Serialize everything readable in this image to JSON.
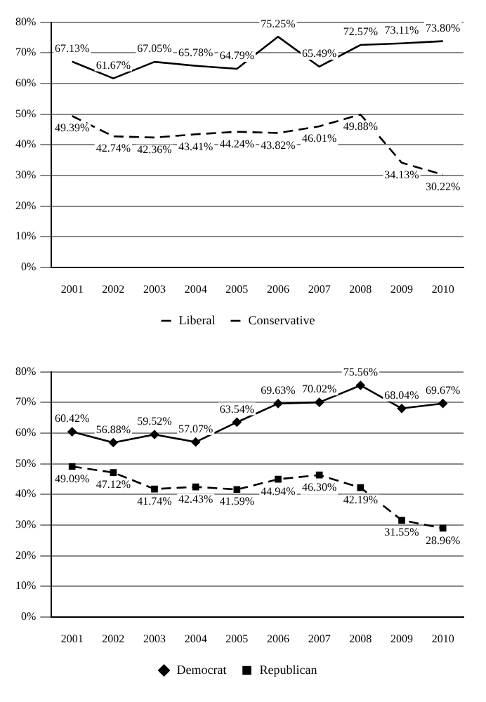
{
  "chart_data": [
    {
      "type": "line",
      "categories": [
        "2001",
        "2002",
        "2003",
        "2004",
        "2005",
        "2006",
        "2007",
        "2008",
        "2009",
        "2010"
      ],
      "series": [
        {
          "name": "Liberal",
          "color": "#000000",
          "line_style": "solid",
          "values": [
            67.13,
            61.67,
            67.05,
            65.78,
            64.79,
            75.25,
            65.49,
            72.57,
            73.11,
            73.8
          ],
          "value_labels": [
            "67.13%",
            "61.67%",
            "67.05%",
            "65.78%",
            "64.79%",
            "75.25%",
            "65.49%",
            "72.57%",
            "73.11%",
            "73.80%"
          ]
        },
        {
          "name": "Conservative",
          "color": "#000000",
          "line_style": "dashed",
          "values": [
            49.39,
            42.74,
            42.36,
            43.41,
            44.24,
            43.82,
            46.01,
            49.88,
            34.13,
            30.22
          ],
          "value_labels": [
            "49.39%",
            "42.74%",
            "42.36%",
            "43.41%",
            "44.24%",
            "43.82%",
            "46.01%",
            "49.88%",
            "34.13%",
            "30.22%"
          ]
        }
      ],
      "ylim": [
        0,
        80
      ],
      "yticks": [
        {
          "value": 0,
          "label": "0%"
        },
        {
          "value": 10,
          "label": "10%"
        },
        {
          "value": 20,
          "label": "20%"
        },
        {
          "value": 30,
          "label": "30%"
        },
        {
          "value": 40,
          "label": "40%"
        },
        {
          "value": 50,
          "label": "50%"
        },
        {
          "value": 60,
          "label": "60%"
        },
        {
          "value": 70,
          "label": "70%"
        },
        {
          "value": 80,
          "label": "80%"
        }
      ],
      "grid": "y",
      "legend": "bottom"
    },
    {
      "type": "line",
      "categories": [
        "2001",
        "2002",
        "2003",
        "2004",
        "2005",
        "2006",
        "2007",
        "2008",
        "2009",
        "2010"
      ],
      "series": [
        {
          "name": "Democrat",
          "color": "#000000",
          "line_style": "solid",
          "marker": "diamond",
          "values": [
            60.42,
            56.88,
            59.52,
            57.07,
            63.54,
            69.63,
            70.02,
            75.56,
            68.04,
            69.67
          ],
          "value_labels": [
            "60.42%",
            "56.88%",
            "59.52%",
            "57.07%",
            "63.54%",
            "69.63%",
            "70.02%",
            "75.56%",
            "68.04%",
            "69.67%"
          ]
        },
        {
          "name": "Republican",
          "color": "#000000",
          "line_style": "dashed",
          "marker": "square",
          "values": [
            49.09,
            47.12,
            41.74,
            42.43,
            41.59,
            44.94,
            46.3,
            42.19,
            31.55,
            28.96
          ],
          "value_labels": [
            "49.09%",
            "47.12%",
            "41.74%",
            "42.43%",
            "41.59%",
            "44.94%",
            "46.30%",
            "42.19%",
            "31.55%",
            "28.96%"
          ]
        }
      ],
      "ylim": [
        0,
        80
      ],
      "yticks": [
        {
          "value": 0,
          "label": "0%"
        },
        {
          "value": 10,
          "label": "10%"
        },
        {
          "value": 20,
          "label": "20%"
        },
        {
          "value": 30,
          "label": "30%"
        },
        {
          "value": 40,
          "label": "40%"
        },
        {
          "value": 50,
          "label": "50%"
        },
        {
          "value": 60,
          "label": "60%"
        },
        {
          "value": 70,
          "label": "70%"
        },
        {
          "value": 80,
          "label": "80%"
        }
      ],
      "grid": "y",
      "legend": "bottom"
    }
  ]
}
